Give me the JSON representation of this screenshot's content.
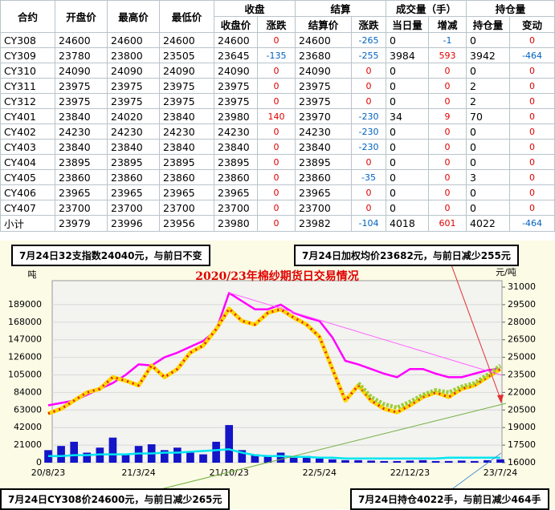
{
  "table": {
    "top_headers": [
      "合约",
      "开盘价",
      "最高价",
      "最低价",
      "收盘",
      "结算",
      "成交量（手）",
      "持仓量"
    ],
    "sub_headers": [
      "收盘价",
      "涨跌",
      "结算价",
      "涨跌",
      "当日量",
      "增减",
      "持仓量",
      "变动"
    ],
    "rows": [
      [
        "CY308",
        24600,
        24600,
        24600,
        24600,
        0,
        24600,
        -265,
        0,
        -1,
        0,
        0
      ],
      [
        "CY309",
        23780,
        23800,
        23505,
        23645,
        -135,
        23680,
        -255,
        3984,
        593,
        3942,
        -464
      ],
      [
        "CY310",
        24090,
        24090,
        24090,
        24090,
        0,
        24090,
        0,
        0,
        0,
        0,
        0
      ],
      [
        "CY311",
        23975,
        23975,
        23975,
        23975,
        0,
        23975,
        0,
        0,
        0,
        2,
        0
      ],
      [
        "CY312",
        23975,
        23975,
        23975,
        23975,
        0,
        23975,
        0,
        0,
        0,
        2,
        0
      ],
      [
        "CY401",
        23840,
        24020,
        23840,
        23980,
        140,
        23970,
        -230,
        34,
        9,
        70,
        0
      ],
      [
        "CY402",
        24230,
        24230,
        24230,
        24230,
        0,
        24230,
        -230,
        0,
        0,
        0,
        0
      ],
      [
        "CY403",
        23840,
        23840,
        23840,
        23840,
        0,
        23840,
        -230,
        0,
        0,
        0,
        0
      ],
      [
        "CY404",
        23895,
        23895,
        23895,
        23895,
        0,
        23895,
        0,
        0,
        0,
        0,
        0
      ],
      [
        "CY405",
        23860,
        23860,
        23860,
        23860,
        0,
        23860,
        -35,
        0,
        0,
        3,
        0
      ],
      [
        "CY406",
        23965,
        23965,
        23965,
        23965,
        0,
        23965,
        0,
        0,
        0,
        0,
        0
      ],
      [
        "CY407",
        23700,
        23700,
        23700,
        23700,
        0,
        23700,
        0,
        0,
        0,
        0,
        0
      ],
      [
        "小计",
        23979,
        23996,
        23956,
        23980,
        0,
        23982,
        -104,
        4018,
        601,
        4022,
        -464
      ]
    ]
  },
  "notes": [
    "7月24日32支指数24040元，与前日不变",
    "7月24日加权均价23682元，与前日减少255元",
    "7月24日CY308价24600元，与前日减少265元",
    "7月24日持仓4022手，与前日减少464手"
  ],
  "chart_data": {
    "type": "combo",
    "title": "2020/23年棉纱期货日交易情况",
    "y_label": "吨",
    "y2_label": "元/吨",
    "categories": [
      "20/8/23",
      null,
      null,
      null,
      null,
      null,
      null,
      "21/3/24",
      null,
      null,
      null,
      null,
      null,
      null,
      "21/10/23",
      null,
      null,
      null,
      null,
      null,
      null,
      "22/5/24",
      null,
      null,
      null,
      null,
      null,
      null,
      "22/12/23",
      null,
      null,
      null,
      null,
      null,
      null,
      "23/7/24"
    ],
    "ylim": [
      0,
      210000
    ],
    "yticks": [
      0,
      21000,
      42000,
      63000,
      84000,
      105000,
      126000,
      147000,
      168000,
      189000
    ],
    "y2lim": [
      16000,
      31000
    ],
    "y2ticks": [
      16000,
      17500,
      19000,
      20500,
      22000,
      23500,
      25000,
      26500,
      28000,
      29500,
      31000
    ],
    "grid": true,
    "series": [
      {
        "type": "bar",
        "color": "#1414c8",
        "values": [
          15000,
          20000,
          25000,
          12000,
          18000,
          30000,
          10000,
          20000,
          22000,
          15000,
          18000,
          12000,
          10000,
          25000,
          45000,
          15000,
          10000,
          8000,
          12000,
          6000,
          8000,
          5000,
          4000,
          3000,
          3000,
          2500,
          2000,
          2000,
          2500,
          3000,
          2000,
          2000,
          2500,
          2000,
          3000,
          4000
        ]
      },
      {
        "type": "line",
        "color": "#00e5f0",
        "values": [
          8000,
          8000,
          9000,
          9000,
          10000,
          10000,
          10000,
          11000,
          11000,
          12000,
          12000,
          13000,
          14000,
          15000,
          16000,
          12000,
          9000,
          8000,
          8000,
          7000,
          7000,
          6000,
          6000,
          5000,
          5000,
          5000,
          5000,
          5000,
          5000,
          5000,
          5000,
          6000,
          6000,
          6000,
          6000,
          6000
        ]
      },
      {
        "type": "line",
        "axis": "y2",
        "color": "#ff00ff",
        "values": [
          20900,
          21100,
          21300,
          21800,
          22300,
          22800,
          23500,
          24400,
          24300,
          25000,
          25400,
          25900,
          26400,
          27300,
          30500,
          29800,
          29100,
          29100,
          29500,
          28800,
          28400,
          28100,
          26700,
          24700,
          24400,
          24000,
          23600,
          23300,
          24000,
          24000,
          23600,
          23300,
          23300,
          23600,
          23900,
          24040
        ]
      },
      {
        "type": "line",
        "axis": "y2",
        "color": "#ffd700",
        "values": [
          20200,
          20600,
          21300,
          22000,
          22300,
          23300,
          23000,
          22600,
          24300,
          23300,
          24000,
          25400,
          26000,
          27400,
          29150,
          28100,
          27800,
          28800,
          29100,
          28400,
          27800,
          26750,
          24000,
          21300,
          22600,
          21300,
          20600,
          20300,
          20900,
          21600,
          22000,
          21600,
          22300,
          22600,
          23300,
          24000
        ]
      },
      {
        "type": "line",
        "axis": "y2",
        "color": "#9acd32",
        "values": [
          null,
          null,
          null,
          null,
          null,
          null,
          null,
          null,
          null,
          null,
          null,
          null,
          null,
          null,
          null,
          null,
          null,
          null,
          null,
          null,
          null,
          null,
          null,
          null,
          22800,
          21600,
          21000,
          20700,
          21200,
          21800,
          22200,
          22000,
          22500,
          22800,
          23500,
          24300
        ]
      }
    ]
  }
}
